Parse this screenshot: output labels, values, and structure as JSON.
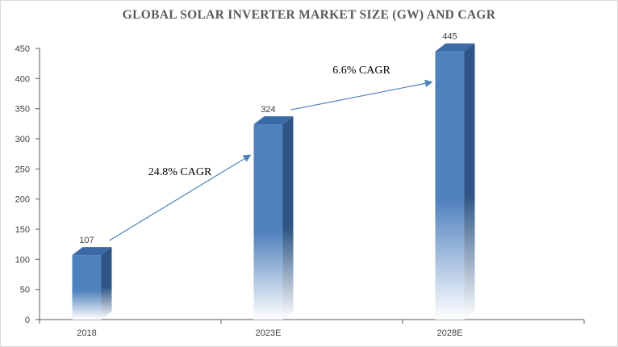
{
  "chart_data": {
    "type": "bar",
    "title": "GLOBAL SOLAR INVERTER MARKET SIZE (GW) AND CAGR",
    "categories": [
      "2018",
      "2023E",
      "2028E"
    ],
    "values": [
      107,
      324,
      445
    ],
    "data_labels": [
      "107",
      "324",
      "445"
    ],
    "ylim": [
      0,
      450
    ],
    "yticks": [
      0,
      50,
      100,
      150,
      200,
      250,
      300,
      350,
      400,
      450
    ],
    "xlabel": "",
    "ylabel": "",
    "grid": false,
    "legend": "none",
    "bar_style": "3d-gradient",
    "annotations": [
      {
        "text": "24.8% CAGR",
        "from": "2018",
        "to": "2023E"
      },
      {
        "text": "6.6% CAGR",
        "from": "2023E",
        "to": "2028E"
      }
    ],
    "colors": {
      "bar_front": "#4f81bd",
      "bar_side": "#2e5585",
      "bar_top": "#3c6aa4",
      "arrow": "#4f81bd",
      "axis": "#595959"
    }
  }
}
